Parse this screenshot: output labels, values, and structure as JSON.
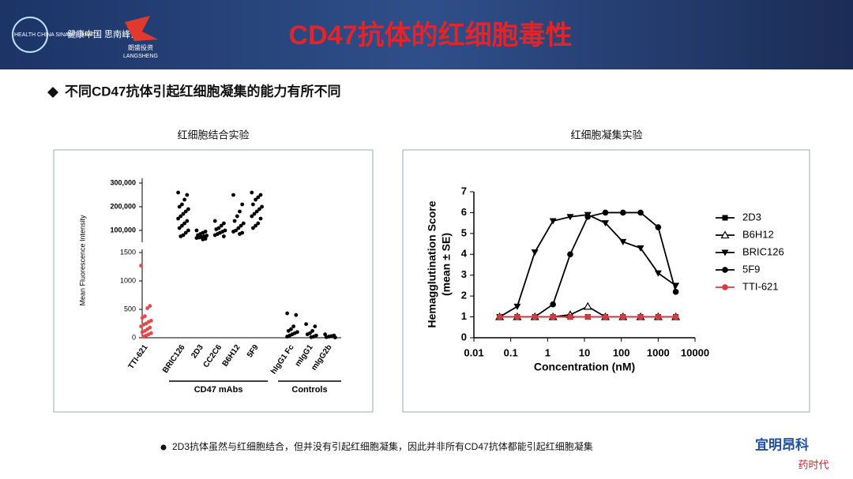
{
  "header": {
    "title": "CD47抗体的红细胞毒性",
    "logo_left_en": "HEALTH CHINA SINAN SUMMIT",
    "logo_left_cn": "健康中国 思南峰会",
    "logo_mid_cn": "朗盛投资",
    "logo_mid_en": "LANGSHENG"
  },
  "bullet": "不同CD47抗体引起红细胞凝集的能力有所不同",
  "captions": [
    "红细胞结合实验",
    "红细胞凝集实验"
  ],
  "footnote": "2D3抗体虽然与红细胞结合，但并没有引起红细胞凝集，因此并非所有CD47抗体都能引起红细胞凝集",
  "watermark": [
    "宜明昂科",
    "药时代"
  ],
  "chart_data": [
    {
      "type": "strip",
      "y_label": "Mean Fluorescence Intensity",
      "categories": [
        "TTI-621",
        "BRIC126",
        "2D3",
        "CC2C6",
        "B6H12",
        "5F9",
        "hIgG1 Fc",
        "mIgG1",
        "mIgG2b"
      ],
      "colors": [
        "#e8474c",
        "#000000",
        "#000000",
        "#000000",
        "#000000",
        "#000000",
        "#000000",
        "#000000",
        "#000000"
      ],
      "values": [
        [
          1270,
          560,
          520,
          380,
          350,
          300,
          280,
          250,
          230,
          200,
          180,
          150,
          120,
          100,
          80,
          60,
          40,
          20
        ],
        [
          260000,
          250000,
          230000,
          210000,
          200000,
          190000,
          180000,
          170000,
          160000,
          150000,
          140000,
          130000,
          120000,
          110000,
          100000,
          90000,
          80000,
          75000
        ],
        [
          100000,
          95000,
          90000,
          85000,
          80000,
          78000,
          75000,
          72000,
          70000,
          68000,
          65000,
          62000
        ],
        [
          140000,
          130000,
          120000,
          110000,
          105000,
          100000,
          95000,
          90000,
          85000,
          80000,
          75000
        ],
        [
          250000,
          210000,
          180000,
          160000,
          140000,
          130000,
          120000,
          110000,
          100000,
          95000,
          90000,
          85000
        ],
        [
          260000,
          250000,
          240000,
          230000,
          210000,
          200000,
          190000,
          180000,
          170000,
          160000,
          150000,
          130000,
          120000,
          110000
        ],
        [
          430,
          400,
          200,
          150,
          120,
          100,
          80,
          60,
          40,
          20
        ],
        [
          240,
          200,
          120,
          80,
          60,
          40,
          20,
          10
        ],
        [
          60,
          40,
          30,
          20,
          10,
          5
        ]
      ],
      "ylim": [
        0,
        1500
      ],
      "yticks": [
        0,
        500,
        1000,
        1500
      ],
      "ylim_upper": [
        50000,
        300000
      ],
      "yticks_upper": [
        {
          "value": 100000,
          "label": "100,000"
        },
        {
          "value": 200000,
          "label": "200,000"
        },
        {
          "value": 300000,
          "label": "300,000"
        }
      ],
      "groups": [
        {
          "label": "CD47 mAbs",
          "members": [
            "BRIC126",
            "2D3",
            "CC2C6",
            "B6H12",
            "5F9"
          ]
        },
        {
          "label": "Controls",
          "members": [
            "hIgG1 Fc",
            "mIgG1",
            "mIgG2b"
          ]
        }
      ]
    },
    {
      "type": "line",
      "x_label": "Concentration (nM)",
      "y_label": [
        "Hemagglutination Score",
        "(mean ± SE)"
      ],
      "log_x": true,
      "legend": "right",
      "x": [
        0.05,
        0.15,
        0.45,
        1.4,
        4.1,
        12.3,
        37,
        111,
        333,
        1000,
        3000
      ],
      "xlim": [
        0.01,
        10000
      ],
      "xticks": [
        0.01,
        0.1,
        1,
        10,
        100,
        1000,
        10000
      ],
      "ylim": [
        0,
        7
      ],
      "yticks": [
        0,
        1,
        2,
        3,
        4,
        5,
        6,
        7
      ],
      "series": [
        {
          "name": "2D3",
          "color": "#000000",
          "marker": "square",
          "values": [
            1,
            1,
            1,
            1,
            1,
            1,
            1,
            1,
            1,
            1,
            1
          ]
        },
        {
          "name": "B6H12",
          "color": "#000000",
          "marker": "triangle-open",
          "values": [
            1,
            1,
            1,
            1,
            1.1,
            1.5,
            1,
            1,
            1,
            1,
            1
          ]
        },
        {
          "name": "BRIC126",
          "color": "#000000",
          "marker": "triangle-down",
          "values": [
            1,
            1.5,
            4.1,
            5.6,
            5.8,
            5.9,
            5.5,
            4.6,
            4.3,
            3.1,
            2.5
          ]
        },
        {
          "name": "5F9",
          "color": "#000000",
          "marker": "circle",
          "values": [
            1,
            1,
            1,
            1.6,
            4,
            5.8,
            6,
            6,
            6,
            5.3,
            2.2
          ]
        },
        {
          "name": "TTI-621",
          "color": "#d9383e",
          "marker": "circle",
          "values": [
            1,
            1,
            1,
            1,
            1,
            1,
            1,
            1,
            1,
            1,
            1
          ]
        }
      ]
    }
  ]
}
